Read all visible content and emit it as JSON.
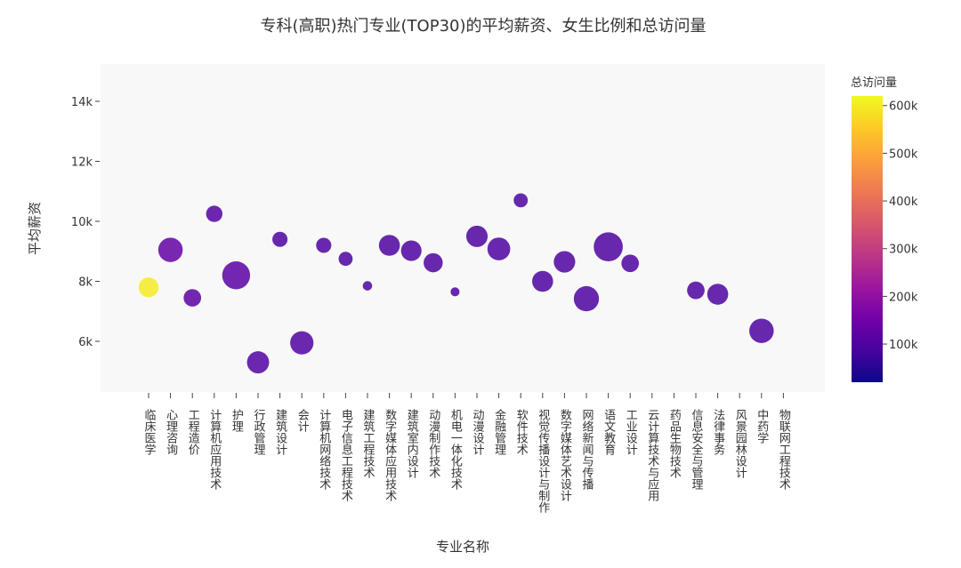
{
  "chart_data": {
    "type": "scatter",
    "title": "专科(高职)热门专业(TOP30)的平均薪资、女生比例和总访问量",
    "xlabel": "专业名称",
    "ylabel": "平均薪资",
    "ylim": [
      4200,
      15200
    ],
    "yticks": [
      6000,
      8000,
      10000,
      12000,
      14000
    ],
    "ytick_labels": [
      "6k",
      "8k",
      "10k",
      "12k",
      "14k"
    ],
    "size_encodes": "女生比例",
    "colorbar": {
      "title": "总访问量",
      "range": [
        20000,
        620000
      ],
      "ticks": [
        100000,
        200000,
        300000,
        400000,
        500000,
        600000
      ],
      "tick_labels": [
        "100k",
        "200k",
        "300k",
        "400k",
        "500k",
        "600k"
      ],
      "colorscale": [
        "#0d0887",
        "#46039f",
        "#7201a8",
        "#9c179e",
        "#bd3786",
        "#d8576b",
        "#ed7953",
        "#fb9f3a",
        "#fdca26",
        "#f0f921"
      ]
    },
    "categories": [
      "临床医学",
      "心理咨询",
      "工程造价",
      "计算机应用技术",
      "护理",
      "行政管理",
      "建筑设计",
      "会计",
      "计算机网络技术",
      "电子信息工程技术",
      "建筑工程技术",
      "数字媒体应用技术",
      "建筑室内设计",
      "动漫制作技术",
      "机电一体化技术",
      "动漫设计",
      "金融管理",
      "软件技术",
      "视觉传播设计与制作",
      "数字媒体艺术设计",
      "网络新闻与传播",
      "语文教育",
      "工业设计",
      "云计算技术与应用",
      "药品生物技术",
      "信息安全与管理",
      "法律事务",
      "风景园林设计",
      "中药学",
      "物联网工程技术"
    ],
    "points": [
      {
        "x": "临床医学",
        "y": 7800,
        "size": 0.55,
        "views": 600000
      },
      {
        "x": "心理咨询",
        "y": 9050,
        "size": 0.75,
        "views": 130000
      },
      {
        "x": "工程造价",
        "y": 7450,
        "size": 0.45,
        "views": 115000
      },
      {
        "x": "计算机应用技术",
        "y": 10250,
        "size": 0.4,
        "views": 110000
      },
      {
        "x": "护理",
        "y": 8200,
        "size": 0.9,
        "views": 120000
      },
      {
        "x": "行政管理",
        "y": 5300,
        "size": 0.65,
        "views": 105000
      },
      {
        "x": "建筑设计",
        "y": 9400,
        "size": 0.35,
        "views": 100000
      },
      {
        "x": "会计",
        "y": 5950,
        "size": 0.7,
        "views": 108000
      },
      {
        "x": "计算机网络技术",
        "y": 9200,
        "size": 0.35,
        "views": 100000
      },
      {
        "x": "电子信息工程技术",
        "y": 8750,
        "size": 0.3,
        "views": 100000
      },
      {
        "x": "建筑工程技术",
        "y": 7850,
        "size": 0.1,
        "views": 100000
      },
      {
        "x": "数字媒体应用技术",
        "y": 9200,
        "size": 0.6,
        "views": 100000
      },
      {
        "x": "建筑室内设计",
        "y": 9020,
        "size": 0.58,
        "views": 100000
      },
      {
        "x": "动漫制作技术",
        "y": 8620,
        "size": 0.52,
        "views": 100000
      },
      {
        "x": "机电一体化技术",
        "y": 7650,
        "size": 0.08,
        "views": 100000
      },
      {
        "x": "动漫设计",
        "y": 9500,
        "size": 0.62,
        "views": 100000
      },
      {
        "x": "金融管理",
        "y": 9080,
        "size": 0.68,
        "views": 100000
      },
      {
        "x": "软件技术",
        "y": 10700,
        "size": 0.3,
        "views": 100000
      },
      {
        "x": "视觉传播设计与制作",
        "y": 8000,
        "size": 0.6,
        "views": 100000
      },
      {
        "x": "数字媒体艺术设计",
        "y": 8650,
        "size": 0.62,
        "views": 100000
      },
      {
        "x": "网络新闻与传播",
        "y": 7420,
        "size": 0.78,
        "views": 100000
      },
      {
        "x": "语文教育",
        "y": 9150,
        "size": 0.95,
        "views": 100000
      },
      {
        "x": "工业设计",
        "y": 8600,
        "size": 0.45,
        "views": 100000
      },
      {
        "x": "信息安全与管理",
        "y": 7700,
        "size": 0.45,
        "views": 100000
      },
      {
        "x": "法律事务",
        "y": 7570,
        "size": 0.6,
        "views": 100000
      },
      {
        "x": "中药学",
        "y": 6350,
        "size": 0.75,
        "views": 100000
      }
    ],
    "grid": false,
    "plot_bgcolor": "#f8f8f8"
  }
}
